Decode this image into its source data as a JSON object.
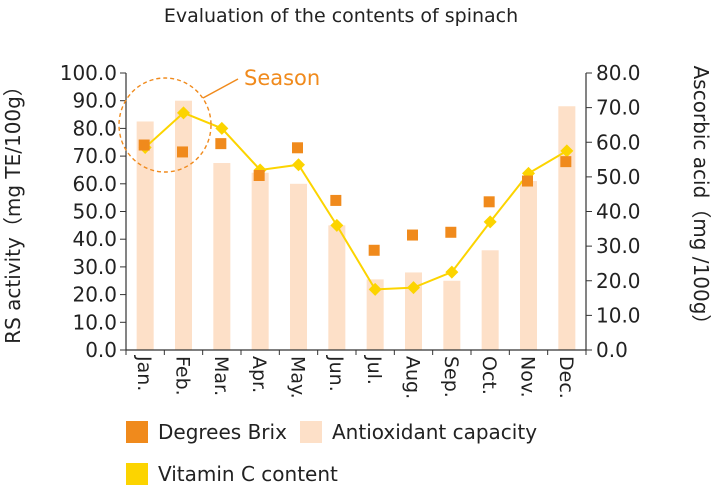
{
  "chart_data": {
    "type": "bar",
    "title": "Evaluation of the contents of spinach",
    "annotation": "Season",
    "categories": [
      "Jan.",
      "Feb.",
      "Mar.",
      "Apr.",
      "May.",
      "Jun.",
      "Jul.",
      "Aug.",
      "Sep.",
      "Oct.",
      "Nov.",
      "Dec."
    ],
    "ylabel_left": "RS activity（mg TE/100g）",
    "ylabel_right": "Ascorbic acid（mg /100g）",
    "ylim_left": [
      0,
      100
    ],
    "yticks_left": [
      "100.0",
      "90.0",
      "80.0",
      "70.0",
      "60.0",
      "50.0",
      "40.0",
      "30.0",
      "20.0",
      "10.0",
      "0.0"
    ],
    "ylim_right": [
      0,
      80
    ],
    "yticks_right": [
      "80.0",
      "70.0",
      "60.0",
      "50.0",
      "40.0",
      "30.0",
      "20.0",
      "10.0",
      "0.0"
    ],
    "grid": false,
    "legend_position": "bottom",
    "series": [
      {
        "name": "Antioxidant capacity",
        "kind": "bar",
        "axis": "left",
        "color": "#FDE0C8",
        "values": [
          82.5,
          90.0,
          67.5,
          64.0,
          60.0,
          45.0,
          25.5,
          28.0,
          25.0,
          36.0,
          61.0,
          88.0
        ]
      },
      {
        "name": "Degrees Brix",
        "kind": "marker",
        "axis": "left",
        "color": "#F08A1C",
        "values": [
          74.0,
          71.5,
          74.5,
          63.0,
          73.0,
          54.0,
          36.0,
          41.5,
          42.5,
          53.5,
          61.0,
          68.0
        ]
      },
      {
        "name": "Vitamin C content",
        "kind": "line",
        "axis": "right",
        "color": "#FCD400",
        "values": [
          58.5,
          68.5,
          64.0,
          52.0,
          53.5,
          36.0,
          17.5,
          18.0,
          22.5,
          37.0,
          51.0,
          57.5
        ]
      }
    ]
  },
  "legend": {
    "brix": "Degrees Brix",
    "antioxidant": "Antioxidant capacity",
    "vitamin_c": "Vitamin C content"
  }
}
